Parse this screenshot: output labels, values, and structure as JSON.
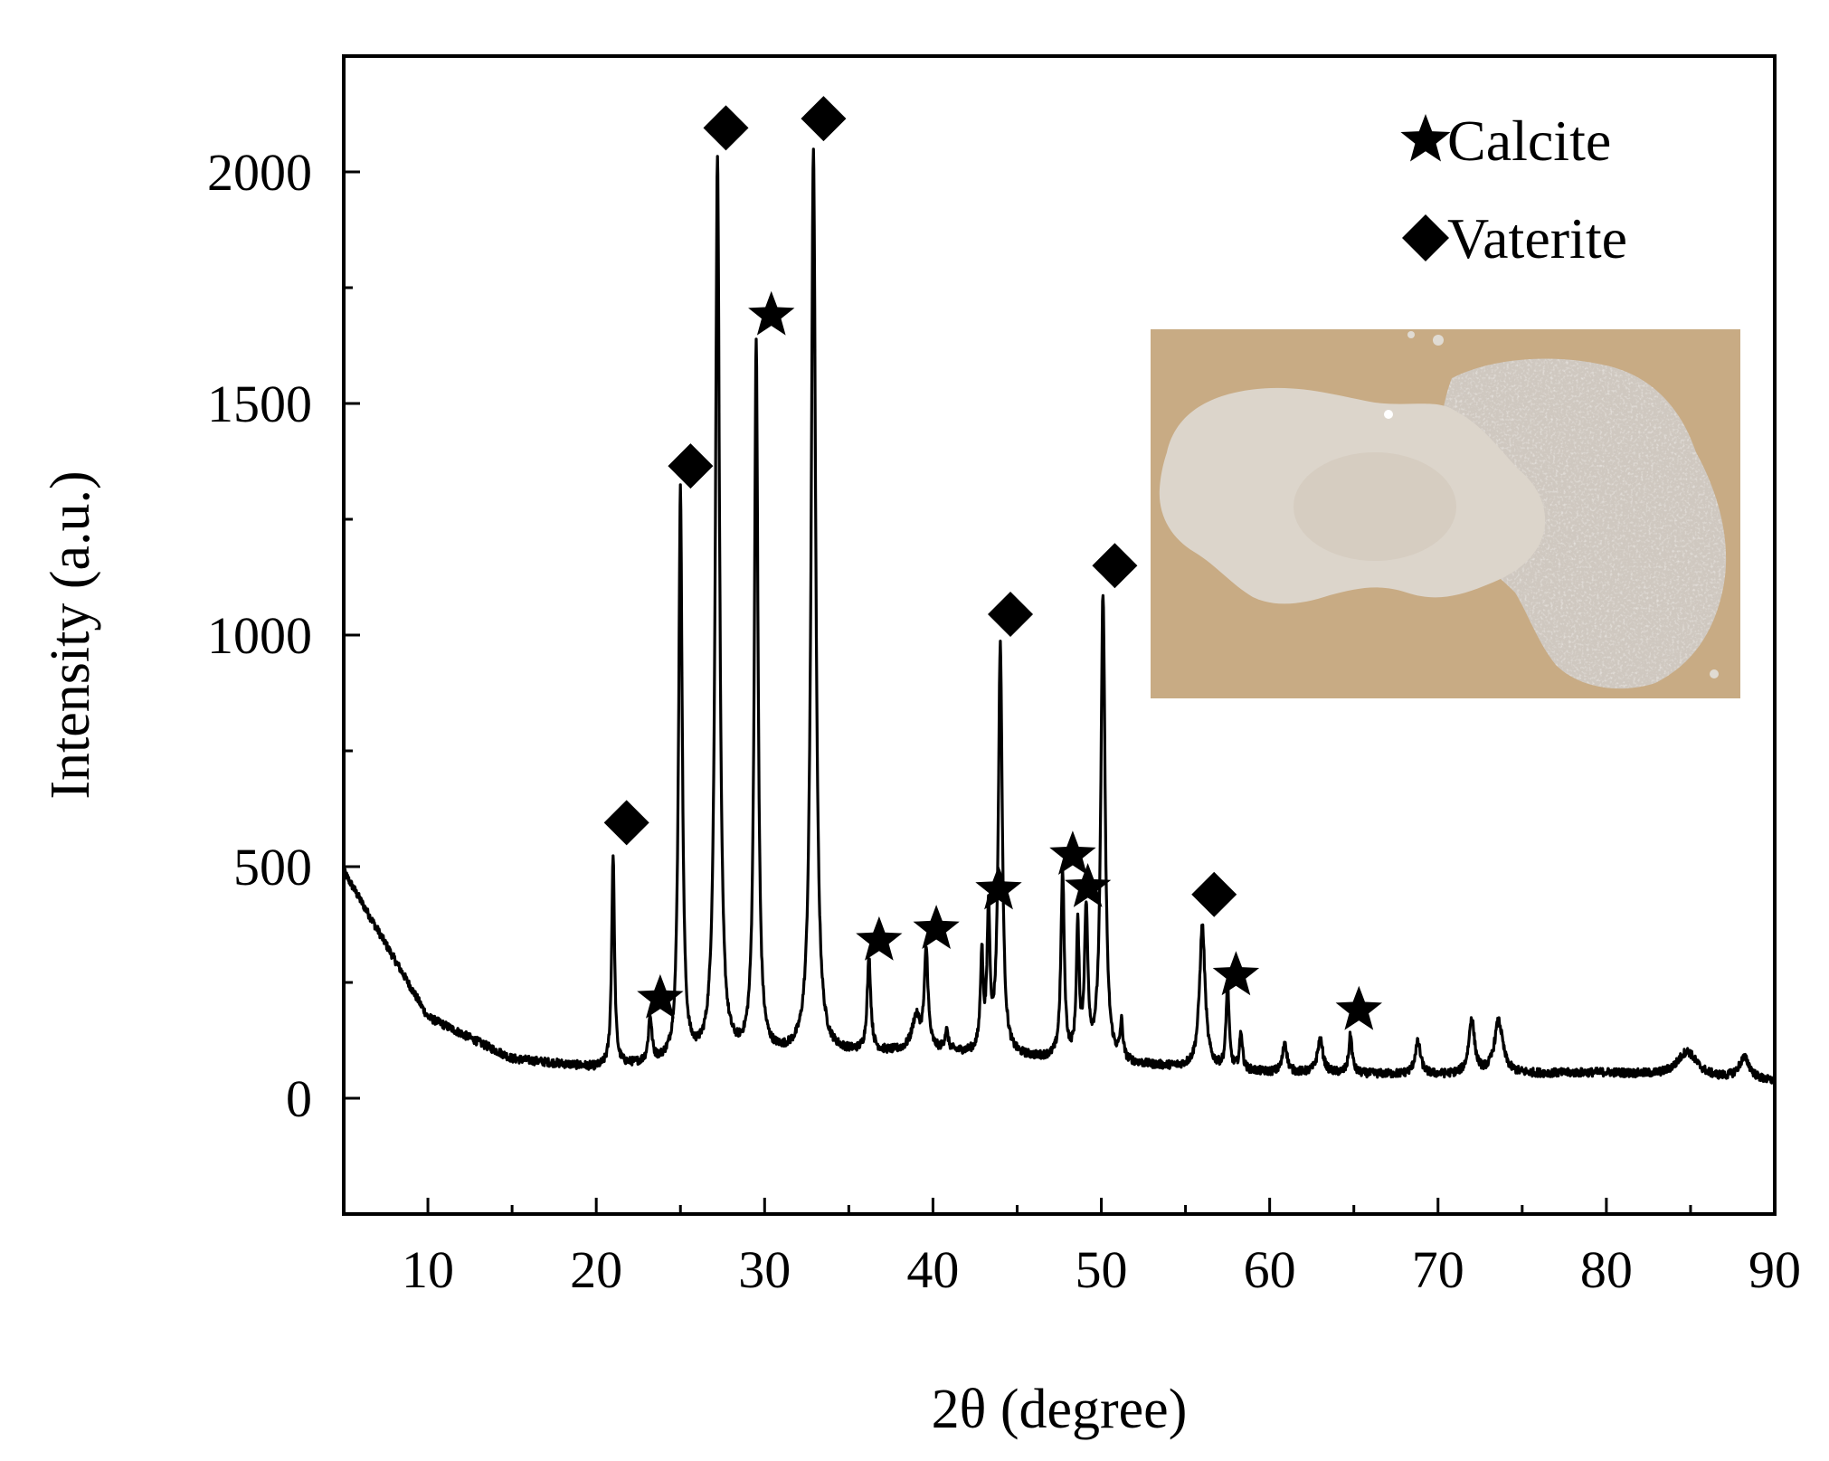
{
  "chart_data": {
    "type": "line",
    "title": "",
    "xlabel": "2θ (degree)",
    "ylabel": "Intensity (a.u.)",
    "xlim": [
      5,
      90
    ],
    "ylim": [
      -250,
      2250
    ],
    "xticks": [
      10,
      20,
      30,
      40,
      50,
      60,
      70,
      80,
      90
    ],
    "yticks": [
      0,
      500,
      1000,
      1500,
      2000
    ],
    "grid": false,
    "legend_position": "top-right",
    "line_color": "#000000",
    "background": {
      "x": [
        5,
        10,
        15,
        20,
        30,
        40,
        50,
        60,
        70,
        80,
        90
      ],
      "y": [
        490,
        175,
        85,
        65,
        90,
        100,
        75,
        55,
        50,
        55,
        35
      ]
    },
    "peaks": [
      {
        "x": 21.0,
        "y": 525,
        "w": 0.1
      },
      {
        "x": 23.2,
        "y": 170,
        "w": 0.12
      },
      {
        "x": 25.0,
        "y": 1305,
        "w": 0.13
      },
      {
        "x": 27.2,
        "y": 2030,
        "w": 0.15
      },
      {
        "x": 29.5,
        "y": 1625,
        "w": 0.13
      },
      {
        "x": 32.9,
        "y": 2050,
        "w": 0.16
      },
      {
        "x": 36.2,
        "y": 295,
        "w": 0.13
      },
      {
        "x": 39.0,
        "y": 170,
        "w": 0.3
      },
      {
        "x": 39.6,
        "y": 310,
        "w": 0.13
      },
      {
        "x": 40.8,
        "y": 140,
        "w": 0.12
      },
      {
        "x": 42.9,
        "y": 300,
        "w": 0.1
      },
      {
        "x": 43.3,
        "y": 390,
        "w": 0.1
      },
      {
        "x": 44.0,
        "y": 975,
        "w": 0.14
      },
      {
        "x": 47.7,
        "y": 480,
        "w": 0.12
      },
      {
        "x": 48.6,
        "y": 355,
        "w": 0.1
      },
      {
        "x": 49.1,
        "y": 390,
        "w": 0.12
      },
      {
        "x": 50.1,
        "y": 1085,
        "w": 0.15
      },
      {
        "x": 51.2,
        "y": 150,
        "w": 0.1
      },
      {
        "x": 56.0,
        "y": 370,
        "w": 0.2
      },
      {
        "x": 57.5,
        "y": 250,
        "w": 0.1
      },
      {
        "x": 58.3,
        "y": 140,
        "w": 0.1
      },
      {
        "x": 60.9,
        "y": 120,
        "w": 0.15
      },
      {
        "x": 63.0,
        "y": 125,
        "w": 0.2
      },
      {
        "x": 64.8,
        "y": 135,
        "w": 0.12
      },
      {
        "x": 68.8,
        "y": 120,
        "w": 0.2
      },
      {
        "x": 72.0,
        "y": 170,
        "w": 0.2
      },
      {
        "x": 73.6,
        "y": 165,
        "w": 0.3
      },
      {
        "x": 84.8,
        "y": 100,
        "w": 0.7
      },
      {
        "x": 88.2,
        "y": 85,
        "w": 0.4
      }
    ],
    "series": [
      {
        "name": "Calcite",
        "marker": "star",
        "points": [
          [
            23.8,
            215
          ],
          [
            30.4,
            1690
          ],
          [
            36.8,
            340
          ],
          [
            40.2,
            365
          ],
          [
            43.9,
            450
          ],
          [
            48.3,
            525
          ],
          [
            49.2,
            455
          ],
          [
            58.0,
            265
          ],
          [
            65.3,
            190
          ]
        ]
      },
      {
        "name": "Vaterite",
        "marker": "diamond",
        "points": [
          [
            21.8,
            595
          ],
          [
            25.6,
            1365
          ],
          [
            27.7,
            2095
          ],
          [
            33.5,
            2115
          ],
          [
            44.6,
            1045
          ],
          [
            50.8,
            1150
          ],
          [
            56.7,
            440
          ]
        ]
      }
    ],
    "inset_photo": {
      "description_color": "#d9d2c6",
      "background_color": "#c9ad86"
    }
  }
}
